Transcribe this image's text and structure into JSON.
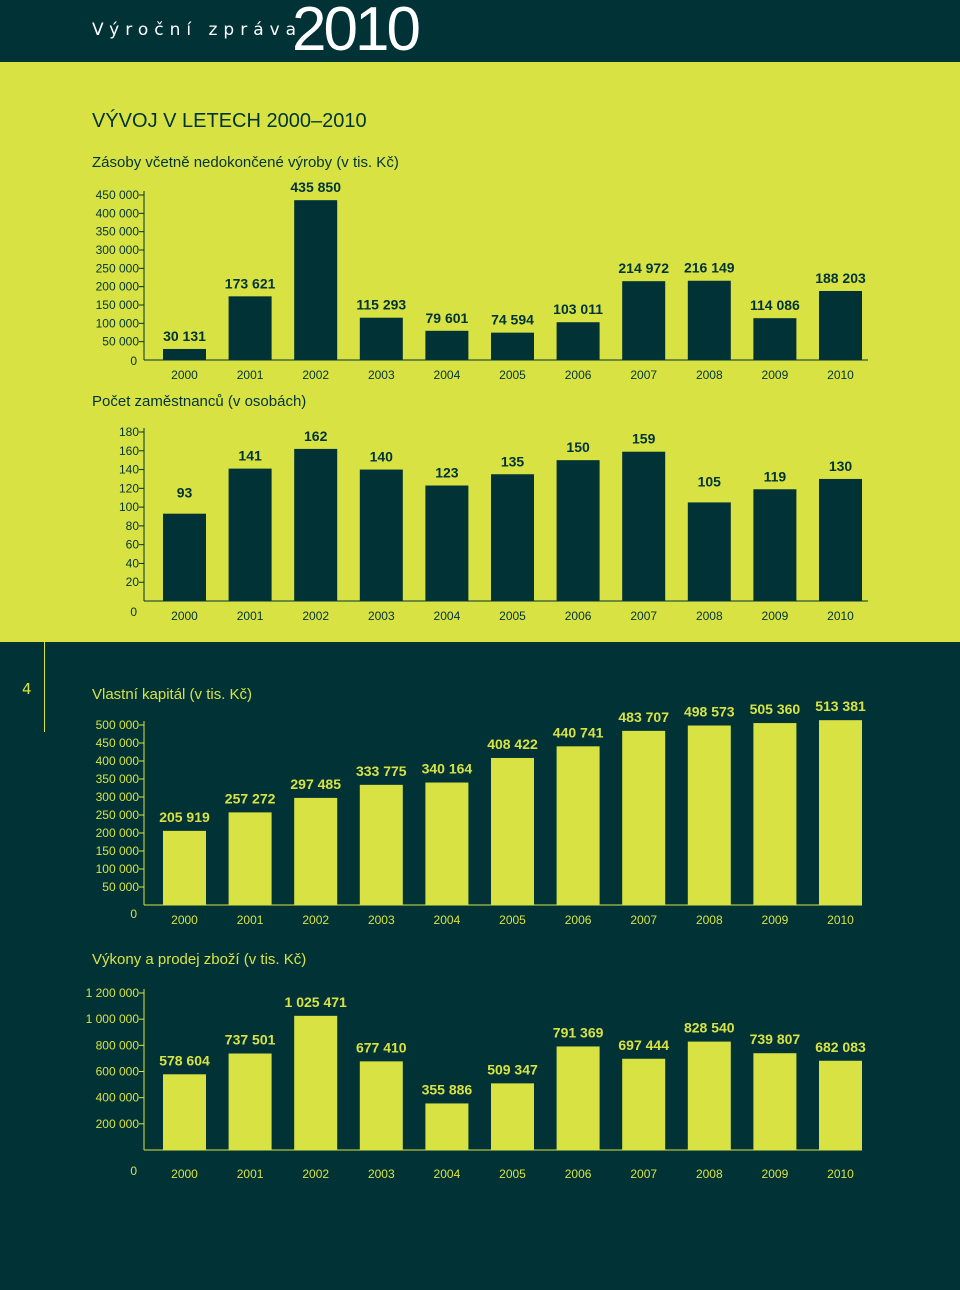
{
  "header": {
    "report_label": "Výroční zpráva",
    "year": "2010"
  },
  "section_title": "VÝVOJ V LETECH 2000–2010",
  "page_number": "4",
  "colors": {
    "dark": "#013336",
    "green": "#d8e343"
  },
  "chart_data": [
    {
      "type": "bar",
      "title": "Zásoby včetně nedokončené výroby (v tis. Kč)",
      "categories": [
        "2000",
        "2001",
        "2002",
        "2003",
        "2004",
        "2005",
        "2006",
        "2007",
        "2008",
        "2009",
        "2010"
      ],
      "values": [
        30131,
        173621,
        435850,
        115293,
        79601,
        74594,
        103011,
        214972,
        216149,
        114086,
        188203
      ],
      "value_labels": [
        "30 131",
        "173 621",
        "435 850",
        "115 293",
        "79 601",
        "74 594",
        "103 011",
        "214 972",
        "216 149",
        "114 086",
        "188 203"
      ],
      "yticks": [
        "0",
        "50 000",
        "100 000",
        "150 000",
        "200 000",
        "250 000",
        "300 000",
        "350 000",
        "400 000",
        "450 000"
      ],
      "ytick_values": [
        0,
        50000,
        100000,
        150000,
        200000,
        250000,
        300000,
        350000,
        400000,
        450000
      ],
      "ylim": [
        0,
        450000
      ],
      "grid": false
    },
    {
      "type": "bar",
      "title": "Počet zaměstnanců (v osobách)",
      "categories": [
        "2000",
        "2001",
        "2002",
        "2003",
        "2004",
        "2005",
        "2006",
        "2007",
        "2008",
        "2009",
        "2010"
      ],
      "values": [
        93,
        141,
        162,
        140,
        123,
        135,
        150,
        159,
        105,
        119,
        130
      ],
      "value_labels": [
        "93",
        "141",
        "162",
        "140",
        "123",
        "135",
        "150",
        "159",
        "105",
        "119",
        "130"
      ],
      "yticks": [
        "0",
        "20",
        "40",
        "60",
        "80",
        "100",
        "120",
        "140",
        "160",
        "180"
      ],
      "ytick_values": [
        0,
        20,
        40,
        60,
        80,
        100,
        120,
        140,
        160,
        180
      ],
      "ylim": [
        0,
        180
      ],
      "grid": false
    },
    {
      "type": "bar",
      "title": "Vlastní kapitál (v tis. Kč)",
      "categories": [
        "2000",
        "2001",
        "2002",
        "2003",
        "2004",
        "2005",
        "2006",
        "2007",
        "2008",
        "2009",
        "2010"
      ],
      "values": [
        205919,
        257272,
        297485,
        333775,
        340164,
        408422,
        440741,
        483707,
        498573,
        505360,
        513381
      ],
      "value_labels": [
        "205 919",
        "257 272",
        "297 485",
        "333 775",
        "340 164",
        "408 422",
        "440 741",
        "483 707",
        "498 573",
        "505 360",
        "513 381"
      ],
      "yticks": [
        "0",
        "50 000",
        "100 000",
        "150 000",
        "200 000",
        "250 000",
        "300 000",
        "350 000",
        "400 000",
        "450 000",
        "500 000"
      ],
      "ytick_values": [
        0,
        50000,
        100000,
        150000,
        200000,
        250000,
        300000,
        350000,
        400000,
        450000,
        500000
      ],
      "ylim": [
        0,
        500000
      ],
      "grid": false
    },
    {
      "type": "bar",
      "title": "Výkony a prodej zboží (v tis. Kč)",
      "categories": [
        "2000",
        "2001",
        "2002",
        "2003",
        "2004",
        "2005",
        "2006",
        "2007",
        "2008",
        "2009",
        "2010"
      ],
      "values": [
        578604,
        737501,
        1025471,
        677410,
        355886,
        509347,
        791369,
        697444,
        828540,
        739807,
        682083
      ],
      "value_labels": [
        "578 604",
        "737 501",
        "1 025 471",
        "677 410",
        "355 886",
        "509 347",
        "791 369",
        "697 444",
        "828 540",
        "739 807",
        "682 083"
      ],
      "yticks": [
        "0",
        "200 000",
        "400 000",
        "600 000",
        "800 000",
        "1 000 000",
        "1 200 000"
      ],
      "ytick_values": [
        0,
        200000,
        400000,
        600000,
        800000,
        1000000,
        1200000
      ],
      "ylim": [
        0,
        1200000
      ],
      "grid": false
    }
  ]
}
